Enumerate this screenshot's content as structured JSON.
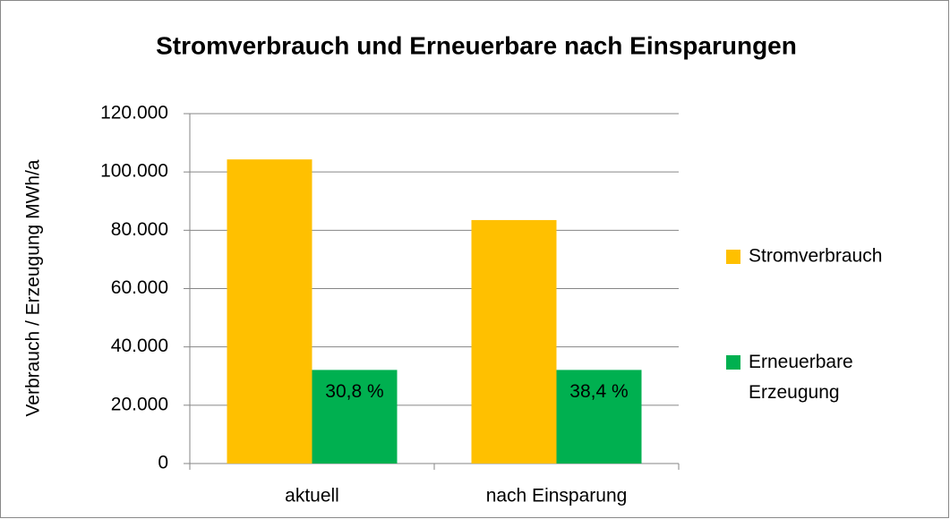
{
  "chart_data": {
    "type": "bar",
    "title": "Stromverbrauch und Erneuerbare nach Einsparungen",
    "ylabel": "Verbrauch / Erzeugung MWh/a",
    "categories": [
      "aktuell",
      "nach Einsparung"
    ],
    "series": [
      {
        "name": "Stromverbrauch",
        "color": "#ffc000",
        "values": [
          104300,
          83500
        ]
      },
      {
        "name": "Erneuerbare Erzeugung",
        "color": "#00b050",
        "values": [
          32100,
          32100
        ]
      }
    ],
    "annotations": [
      "30,8 %",
      "38,4 %"
    ],
    "ylim": [
      0,
      120000
    ],
    "yticks": [
      0,
      {
        "value": 20000,
        "label": "20.000"
      },
      {
        "value": 40000,
        "label": "40.000"
      },
      {
        "value": 60000,
        "label": "60.000"
      },
      {
        "value": 80000,
        "label": "80.000"
      },
      {
        "value": 100000,
        "label": "100.000"
      },
      {
        "value": 120000,
        "label": "120.000"
      }
    ],
    "grid": true,
    "legend": "right"
  }
}
